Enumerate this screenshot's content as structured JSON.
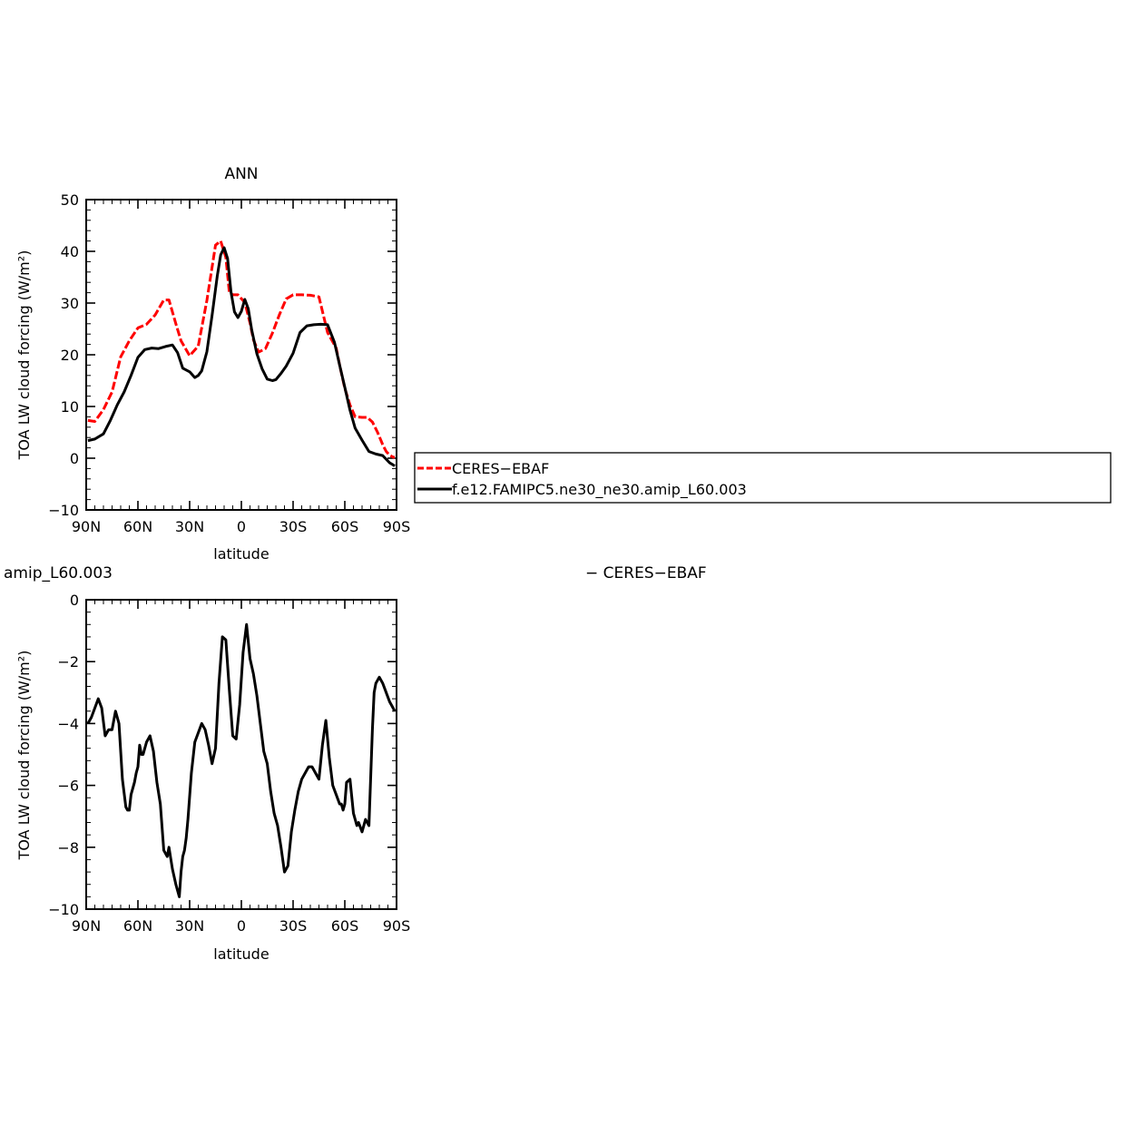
{
  "chart_data": [
    {
      "type": "line",
      "title": "ANN",
      "xlabel": "latitude",
      "ylabel": "TOA LW cloud forcing (W/m²)",
      "xlim": [
        -90,
        90
      ],
      "ylim": [
        -10,
        50
      ],
      "x_ticks": [
        -90,
        -60,
        -30,
        0,
        30,
        60,
        90
      ],
      "x_tick_labels": [
        "90N",
        "60N",
        "30N",
        "0",
        "30S",
        "60S",
        "90S"
      ],
      "y_ticks": [
        -10,
        0,
        10,
        20,
        30,
        40,
        50
      ],
      "y_tick_labels": [
        "−10",
        "0",
        "10",
        "20",
        "30",
        "40",
        "50"
      ],
      "grid": false,
      "legend_position": "right",
      "series": [
        {
          "name": "CERES−EBAF",
          "color": "#ff0000",
          "style": "dashed",
          "x": [
            -89,
            -85,
            -80,
            -75,
            -70,
            -65,
            -60,
            -55,
            -50,
            -45,
            -42,
            -38,
            -35,
            -30,
            -25,
            -20,
            -15,
            -12,
            -9,
            -7,
            -5,
            -2,
            2,
            5,
            7,
            10,
            14,
            18,
            22,
            26,
            30,
            35,
            40,
            45,
            50,
            55,
            57,
            60,
            63,
            66,
            70,
            73,
            76,
            79,
            82,
            84,
            86,
            88,
            89
          ],
          "y": [
            7.3,
            7.1,
            9.4,
            12.8,
            19.6,
            22.7,
            25.2,
            25.9,
            27.7,
            30.6,
            30.6,
            26.0,
            22.7,
            19.8,
            21.7,
            30.5,
            41.2,
            42.0,
            38.8,
            32.1,
            31.6,
            31.6,
            30.1,
            26.2,
            22.9,
            20.5,
            21.2,
            24.2,
            27.7,
            30.8,
            31.6,
            31.6,
            31.5,
            31.2,
            24.3,
            21.3,
            18.0,
            13.5,
            10.3,
            8.0,
            7.9,
            7.9,
            7.0,
            5.0,
            2.6,
            1.3,
            0.6,
            0.2,
            0.2
          ]
        },
        {
          "name": "f.e12.FAMIPC5.ne30_ne30.amip_L60.003",
          "color": "#000000",
          "style": "solid",
          "x": [
            -89,
            -85,
            -80,
            -76,
            -72,
            -68,
            -64,
            -60,
            -56,
            -52,
            -48,
            -44,
            -40,
            -37,
            -34,
            -30,
            -27,
            -25,
            -23,
            -20,
            -17,
            -14,
            -12,
            -10,
            -8,
            -6,
            -4,
            -2,
            0,
            2,
            4,
            6,
            9,
            12,
            15,
            18,
            20,
            23,
            26,
            30,
            34,
            38,
            42,
            46,
            50,
            54,
            57,
            60,
            63,
            66,
            70,
            74,
            78,
            82,
            86,
            89
          ],
          "y": [
            3.4,
            3.7,
            4.7,
            7.3,
            10.3,
            12.8,
            16.0,
            19.5,
            21.0,
            21.3,
            21.2,
            21.6,
            21.9,
            20.4,
            17.4,
            16.7,
            15.6,
            16.0,
            16.9,
            20.6,
            27.6,
            35.2,
            39.3,
            40.7,
            38.6,
            32.1,
            28.3,
            27.2,
            28.4,
            30.7,
            28.9,
            24.8,
            20.2,
            17.3,
            15.3,
            15.0,
            15.2,
            16.4,
            17.8,
            20.3,
            24.3,
            25.6,
            25.8,
            25.9,
            25.8,
            22.4,
            18.0,
            13.7,
            9.3,
            5.8,
            3.5,
            1.3,
            0.8,
            0.5,
            -0.9,
            -1.5
          ]
        }
      ]
    },
    {
      "type": "line",
      "title": "amip_L60.003",
      "subtitle": "−  CERES−EBAF",
      "xlabel": "latitude",
      "ylabel": "TOA LW cloud forcing (W/m²)",
      "xlim": [
        -90,
        90
      ],
      "ylim": [
        -10,
        0
      ],
      "x_ticks": [
        -90,
        -60,
        -30,
        0,
        30,
        60,
        90
      ],
      "x_tick_labels": [
        "90N",
        "60N",
        "30N",
        "0",
        "30S",
        "60S",
        "90S"
      ],
      "y_ticks": [
        -10,
        -8,
        -6,
        -4,
        -2,
        0
      ],
      "y_tick_labels": [
        "−10",
        "−8",
        "−6",
        "−4",
        "−2",
        "0"
      ],
      "grid": false,
      "series": [
        {
          "color": "#000000",
          "style": "solid",
          "x": [
            -89,
            -87,
            -85,
            -83,
            -81,
            -79,
            -77,
            -75,
            -73,
            -71,
            -69,
            -67,
            -66,
            -65,
            -64,
            -62,
            -61,
            -60,
            -59,
            -58,
            -57,
            -55,
            -53,
            -51,
            -49,
            -47,
            -45,
            -43,
            -42,
            -40,
            -38,
            -36,
            -35,
            -34,
            -33,
            -32,
            -31,
            -29,
            -27,
            -25,
            -23,
            -21,
            -19,
            -17,
            -15,
            -13,
            -11,
            -9,
            -7,
            -5,
            -3,
            -1,
            1,
            3,
            5,
            7,
            9,
            11,
            13,
            15,
            17,
            19,
            21,
            23,
            25,
            27,
            29,
            31,
            33,
            35,
            37,
            39,
            41,
            43,
            45,
            47,
            49,
            51,
            53,
            55,
            57,
            58,
            59,
            60,
            61,
            63,
            65,
            67,
            68,
            70,
            72,
            74,
            76,
            77,
            78,
            79,
            80,
            81,
            82,
            84,
            86,
            87,
            88,
            89
          ],
          "y": [
            -4.0,
            -3.8,
            -3.5,
            -3.2,
            -3.5,
            -4.4,
            -4.2,
            -4.2,
            -3.6,
            -4.0,
            -5.8,
            -6.7,
            -6.8,
            -6.8,
            -6.3,
            -5.9,
            -5.6,
            -5.4,
            -4.7,
            -5.0,
            -5.0,
            -4.6,
            -4.4,
            -4.9,
            -5.9,
            -6.6,
            -8.1,
            -8.3,
            -8.0,
            -8.7,
            -9.2,
            -9.6,
            -8.8,
            -8.3,
            -8.1,
            -7.7,
            -7.1,
            -5.6,
            -4.6,
            -4.3,
            -4.0,
            -4.2,
            -4.7,
            -5.3,
            -4.8,
            -2.7,
            -1.2,
            -1.3,
            -2.9,
            -4.4,
            -4.5,
            -3.4,
            -1.7,
            -0.8,
            -1.9,
            -2.4,
            -3.1,
            -4.0,
            -4.9,
            -5.3,
            -6.2,
            -6.9,
            -7.3,
            -8.0,
            -8.8,
            -8.6,
            -7.5,
            -6.8,
            -6.2,
            -5.8,
            -5.6,
            -5.4,
            -5.4,
            -5.6,
            -5.8,
            -4.7,
            -3.9,
            -5.1,
            -6.0,
            -6.3,
            -6.6,
            -6.6,
            -6.8,
            -6.6,
            -5.9,
            -5.8,
            -6.9,
            -7.3,
            -7.2,
            -7.5,
            -7.1,
            -7.3,
            -4.2,
            -3.0,
            -2.7,
            -2.6,
            -2.5,
            -2.6,
            -2.7,
            -3.0,
            -3.3,
            -3.4,
            -3.5,
            -3.6
          ]
        }
      ]
    }
  ]
}
